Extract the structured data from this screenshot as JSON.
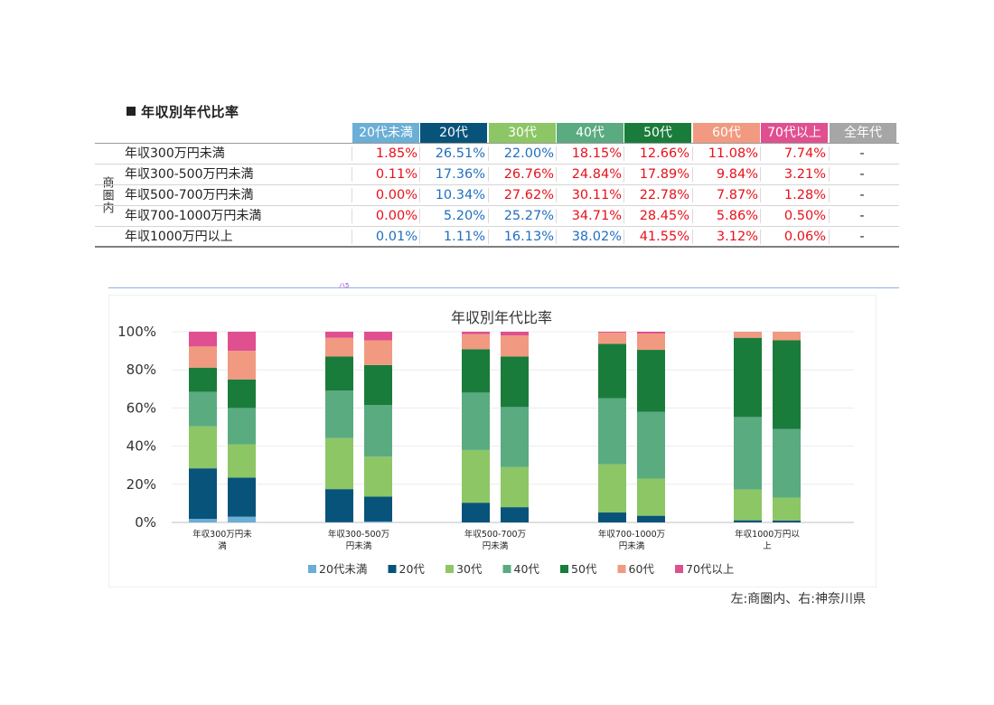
{
  "section_title": "年収別年代比率",
  "table": {
    "side_label": "商圏内",
    "headers": [
      {
        "label": "20代未満",
        "color": "#6baed6"
      },
      {
        "label": "20代",
        "color": "#08537a"
      },
      {
        "label": "30代",
        "color": "#8dc665"
      },
      {
        "label": "40代",
        "color": "#5aab80"
      },
      {
        "label": "50代",
        "color": "#1a7c3b"
      },
      {
        "label": "60代",
        "color": "#f19a81"
      },
      {
        "label": "70代以上",
        "color": "#e04f8f"
      },
      {
        "label": "全年代",
        "color": "#a6a6a6"
      }
    ],
    "rows": [
      {
        "label": "年収300万円未満",
        "values": [
          "1.85%",
          "26.51%",
          "22.00%",
          "18.15%",
          "12.66%",
          "11.08%",
          "7.74%",
          "-"
        ],
        "colors": [
          "#e8101a",
          "#1f6fbf",
          "#1f6fbf",
          "#e8101a",
          "#e8101a",
          "#e8101a",
          "#e8101a",
          "#222222"
        ]
      },
      {
        "label": "年収300-500万円未満",
        "values": [
          "0.11%",
          "17.36%",
          "26.76%",
          "24.84%",
          "17.89%",
          "9.84%",
          "3.21%",
          "-"
        ],
        "colors": [
          "#e8101a",
          "#1f6fbf",
          "#e8101a",
          "#e8101a",
          "#e8101a",
          "#e8101a",
          "#e8101a",
          "#222222"
        ]
      },
      {
        "label": "年収500-700万円未満",
        "values": [
          "0.00%",
          "10.34%",
          "27.62%",
          "30.11%",
          "22.78%",
          "7.87%",
          "1.28%",
          "-"
        ],
        "colors": [
          "#e8101a",
          "#1f6fbf",
          "#e8101a",
          "#e8101a",
          "#e8101a",
          "#e8101a",
          "#e8101a",
          "#222222"
        ]
      },
      {
        "label": "年収700-1000万円未満",
        "values": [
          "0.00%",
          "5.20%",
          "25.27%",
          "34.71%",
          "28.45%",
          "5.86%",
          "0.50%",
          "-"
        ],
        "colors": [
          "#e8101a",
          "#1f6fbf",
          "#1f6fbf",
          "#e8101a",
          "#e8101a",
          "#e8101a",
          "#e8101a",
          "#222222"
        ]
      },
      {
        "label": "年収1000万円以上",
        "values": [
          "0.01%",
          "1.11%",
          "16.13%",
          "38.02%",
          "41.55%",
          "3.12%",
          "0.06%",
          "-"
        ],
        "colors": [
          "#1f6fbf",
          "#1f6fbf",
          "#1f6fbf",
          "#1f6fbf",
          "#e8101a",
          "#e8101a",
          "#e8101a",
          "#222222"
        ]
      }
    ]
  },
  "small_mark": "ハ5",
  "footnote": "左:商圏内、右:神奈川県",
  "chart_data": {
    "type": "bar",
    "stacked": true,
    "title": "年収別年代比率",
    "categories": [
      "年収300万円未満",
      "年収300-500万円未満",
      "年収500-700万円未満",
      "年収700-1000万円未満",
      "年収1000万円以上"
    ],
    "category_tick_lines": [
      [
        "年収300万円未",
        "満"
      ],
      [
        "年収300-500万",
        "円未満"
      ],
      [
        "年収500-700万",
        "円未満"
      ],
      [
        "年収700-1000万",
        "円未満"
      ],
      [
        "年収1000万円以",
        "上"
      ]
    ],
    "ylim": [
      0,
      100
    ],
    "yticks": [
      "0%",
      "20%",
      "40%",
      "60%",
      "80%",
      "100%"
    ],
    "ytick_values": [
      0,
      20,
      40,
      60,
      80,
      100
    ],
    "grid": true,
    "legend_position": "bottom",
    "series": [
      {
        "name": "20代未満",
        "color": "#6baed6"
      },
      {
        "name": "20代",
        "color": "#08537a"
      },
      {
        "name": "30代",
        "color": "#8dc665"
      },
      {
        "name": "40代",
        "color": "#5aab80"
      },
      {
        "name": "50代",
        "color": "#1a7c3b"
      },
      {
        "name": "60代",
        "color": "#f19a81"
      },
      {
        "name": "70代以上",
        "color": "#e04f8f"
      }
    ],
    "bars": [
      [
        [
          1.85,
          26.51,
          22.0,
          18.15,
          12.66,
          11.08,
          7.74
        ],
        [
          3.0,
          20.5,
          17.5,
          19.0,
          15.0,
          15.0,
          10.0
        ]
      ],
      [
        [
          0.11,
          17.36,
          26.76,
          24.84,
          17.89,
          9.84,
          3.21
        ],
        [
          0.5,
          13.0,
          21.0,
          27.0,
          21.0,
          13.0,
          4.5
        ]
      ],
      [
        [
          0.0,
          10.34,
          27.62,
          30.11,
          22.78,
          7.87,
          1.28
        ],
        [
          0.0,
          8.0,
          21.0,
          31.5,
          26.5,
          11.0,
          2.0
        ]
      ],
      [
        [
          0.0,
          5.2,
          25.27,
          34.71,
          28.45,
          5.86,
          0.5
        ],
        [
          0.0,
          3.5,
          19.5,
          35.0,
          32.5,
          8.5,
          1.0
        ]
      ],
      [
        [
          0.01,
          1.11,
          16.13,
          38.02,
          41.55,
          3.12,
          0.06
        ],
        [
          0.0,
          1.0,
          12.0,
          36.0,
          46.5,
          4.5,
          0.0
        ]
      ]
    ]
  }
}
